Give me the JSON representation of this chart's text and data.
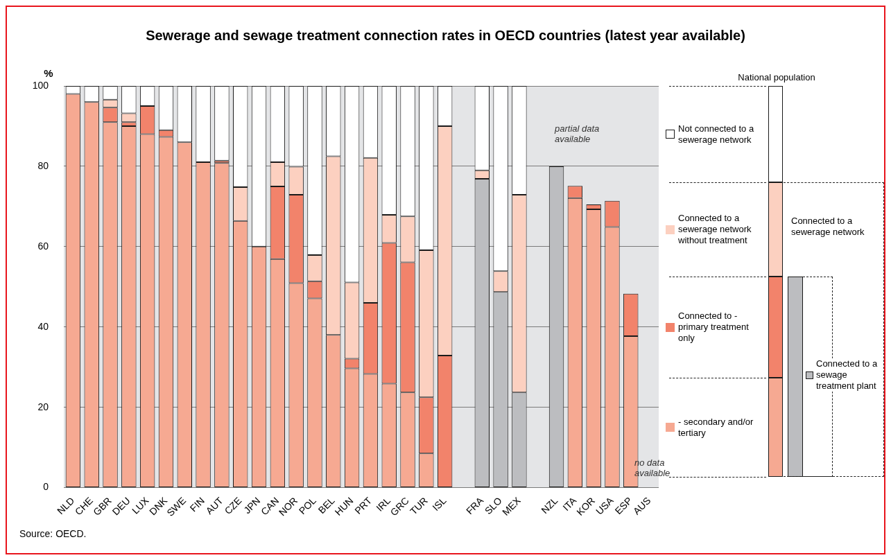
{
  "chart_data": {
    "type": "bar",
    "title": "Sewerage and sewage treatment connection rates in OECD countries (latest year available)",
    "ylabel": "%",
    "legend_title": "National population",
    "stacked": true,
    "grid": "y",
    "legend": "right",
    "ylim": [
      0,
      100
    ],
    "yticks": [
      0,
      20,
      40,
      60,
      80,
      100
    ],
    "categories": [
      "NLD",
      "CHE",
      "GBR",
      "DEU",
      "LUX",
      "DNK",
      "SWE",
      "FIN",
      "AUT",
      "CZE",
      "JPN",
      "CAN",
      "NOR",
      "POL",
      "BEL",
      "HUN",
      "PRT",
      "IRL",
      "GRC",
      "TUR",
      "ISL",
      null,
      "FRA",
      "SLO",
      "MEX",
      null,
      "NZL",
      "ITA",
      "KOR",
      "USA",
      "ESP",
      "AUS"
    ],
    "series": [
      {
        "name": "- secondary and/or tertiary",
        "color": "#f6a992",
        "values": [
          98,
          96,
          91,
          90,
          88,
          87.3,
          86,
          81,
          80.8,
          66.4,
          60,
          56.9,
          50.9,
          47.1,
          38,
          29.7,
          28.3,
          25.9,
          23.7,
          8.5,
          null,
          null,
          null,
          null,
          null,
          null,
          null,
          72.1,
          69.3,
          64.9,
          37.7,
          null
        ]
      },
      {
        "name": "Connected to a sewage treatment plant",
        "color": "#bcbdc0",
        "values": [
          null,
          null,
          null,
          null,
          null,
          null,
          null,
          null,
          null,
          null,
          null,
          null,
          null,
          null,
          null,
          null,
          null,
          null,
          null,
          null,
          null,
          null,
          76.9,
          48.7,
          23.7,
          null,
          80,
          null,
          null,
          null,
          null,
          null
        ]
      },
      {
        "name": "Connected to - primary treatment only",
        "color": "#f2836b",
        "values": [
          null,
          null,
          3.6,
          1,
          7,
          1.7,
          null,
          null,
          0.6,
          null,
          null,
          18.1,
          22,
          4.3,
          null,
          2.4,
          17.7,
          35,
          32.4,
          14,
          32.9,
          null,
          null,
          null,
          null,
          null,
          null,
          3,
          1.2,
          6.5,
          10.6,
          null
        ]
      },
      {
        "name": "Connected to a sewerage network without treatment",
        "color": "#fcd0c0",
        "values": [
          null,
          null,
          2,
          2.2,
          null,
          null,
          null,
          null,
          null,
          8.4,
          null,
          6,
          7,
          6.5,
          44.5,
          19,
          36.1,
          7,
          11.4,
          36.6,
          57.1,
          null,
          2.1,
          5.2,
          49.2,
          null,
          null,
          null,
          null,
          null,
          null,
          null
        ]
      },
      {
        "name": "Not connected to a sewerage network",
        "color": "#ffffff",
        "values": [
          2,
          4,
          3.4,
          6.8,
          5,
          11,
          14,
          19,
          18.6,
          25.2,
          40,
          19,
          20.1,
          42.1,
          17.5,
          48.9,
          17.9,
          32.1,
          32.5,
          40.9,
          10,
          null,
          21,
          46.1,
          27.1,
          null,
          null,
          null,
          null,
          null,
          null,
          null
        ]
      }
    ],
    "annotations": [
      "Connected to a sewerage network",
      "partial data available",
      "no data available",
      "Source: OECD."
    ]
  }
}
